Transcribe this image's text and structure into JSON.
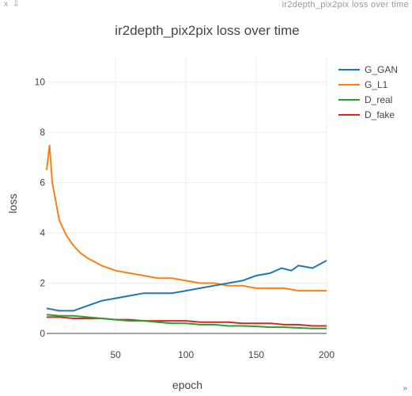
{
  "window": {
    "title": "ir2depth_pix2pix loss over time",
    "close_glyph": "x",
    "pin_glyph": "⇩",
    "corner_glyph": "»"
  },
  "chart_data": {
    "type": "line",
    "title": "ir2depth_pix2pix loss over time",
    "xlabel": "epoch",
    "ylabel": "loss",
    "xlim": [
      1,
      200
    ],
    "ylim": [
      0,
      11
    ],
    "xticks": [
      50,
      100,
      150,
      200
    ],
    "yticks": [
      0,
      2,
      4,
      6,
      8,
      10
    ],
    "grid": true,
    "legend_position": "top-right",
    "series": [
      {
        "name": "G_GAN",
        "color": "#1f77b4",
        "x": [
          1,
          10,
          20,
          30,
          40,
          50,
          60,
          70,
          80,
          90,
          100,
          110,
          120,
          130,
          140,
          150,
          160,
          168,
          175,
          180,
          190,
          200
        ],
        "y": [
          1.0,
          0.9,
          0.9,
          1.1,
          1.3,
          1.4,
          1.5,
          1.6,
          1.6,
          1.6,
          1.7,
          1.8,
          1.9,
          2.0,
          2.1,
          2.3,
          2.4,
          2.6,
          2.5,
          2.7,
          2.6,
          2.9
        ]
      },
      {
        "name": "G_L1",
        "color": "#ff7f0e",
        "x": [
          1,
          3,
          5,
          10,
          15,
          20,
          25,
          30,
          40,
          50,
          60,
          70,
          80,
          90,
          100,
          110,
          120,
          130,
          140,
          150,
          160,
          170,
          180,
          190,
          200
        ],
        "y": [
          6.5,
          7.5,
          6.0,
          4.5,
          3.9,
          3.5,
          3.2,
          3.0,
          2.7,
          2.5,
          2.4,
          2.3,
          2.2,
          2.2,
          2.1,
          2.0,
          2.0,
          1.9,
          1.9,
          1.8,
          1.8,
          1.8,
          1.7,
          1.7,
          1.7
        ]
      },
      {
        "name": "D_real",
        "color": "#2ca02c",
        "x": [
          1,
          10,
          20,
          30,
          40,
          50,
          60,
          70,
          80,
          90,
          100,
          110,
          120,
          130,
          140,
          150,
          160,
          170,
          180,
          190,
          200
        ],
        "y": [
          0.75,
          0.7,
          0.7,
          0.65,
          0.6,
          0.55,
          0.5,
          0.5,
          0.45,
          0.4,
          0.4,
          0.35,
          0.35,
          0.3,
          0.3,
          0.28,
          0.25,
          0.25,
          0.22,
          0.2,
          0.2
        ]
      },
      {
        "name": "D_fake",
        "color": "#d62728",
        "x": [
          1,
          10,
          20,
          30,
          40,
          50,
          60,
          70,
          80,
          90,
          100,
          110,
          120,
          130,
          140,
          150,
          160,
          170,
          180,
          190,
          200
        ],
        "y": [
          0.65,
          0.65,
          0.6,
          0.6,
          0.6,
          0.55,
          0.55,
          0.5,
          0.5,
          0.5,
          0.5,
          0.45,
          0.45,
          0.45,
          0.4,
          0.4,
          0.4,
          0.35,
          0.35,
          0.3,
          0.3
        ]
      }
    ]
  }
}
